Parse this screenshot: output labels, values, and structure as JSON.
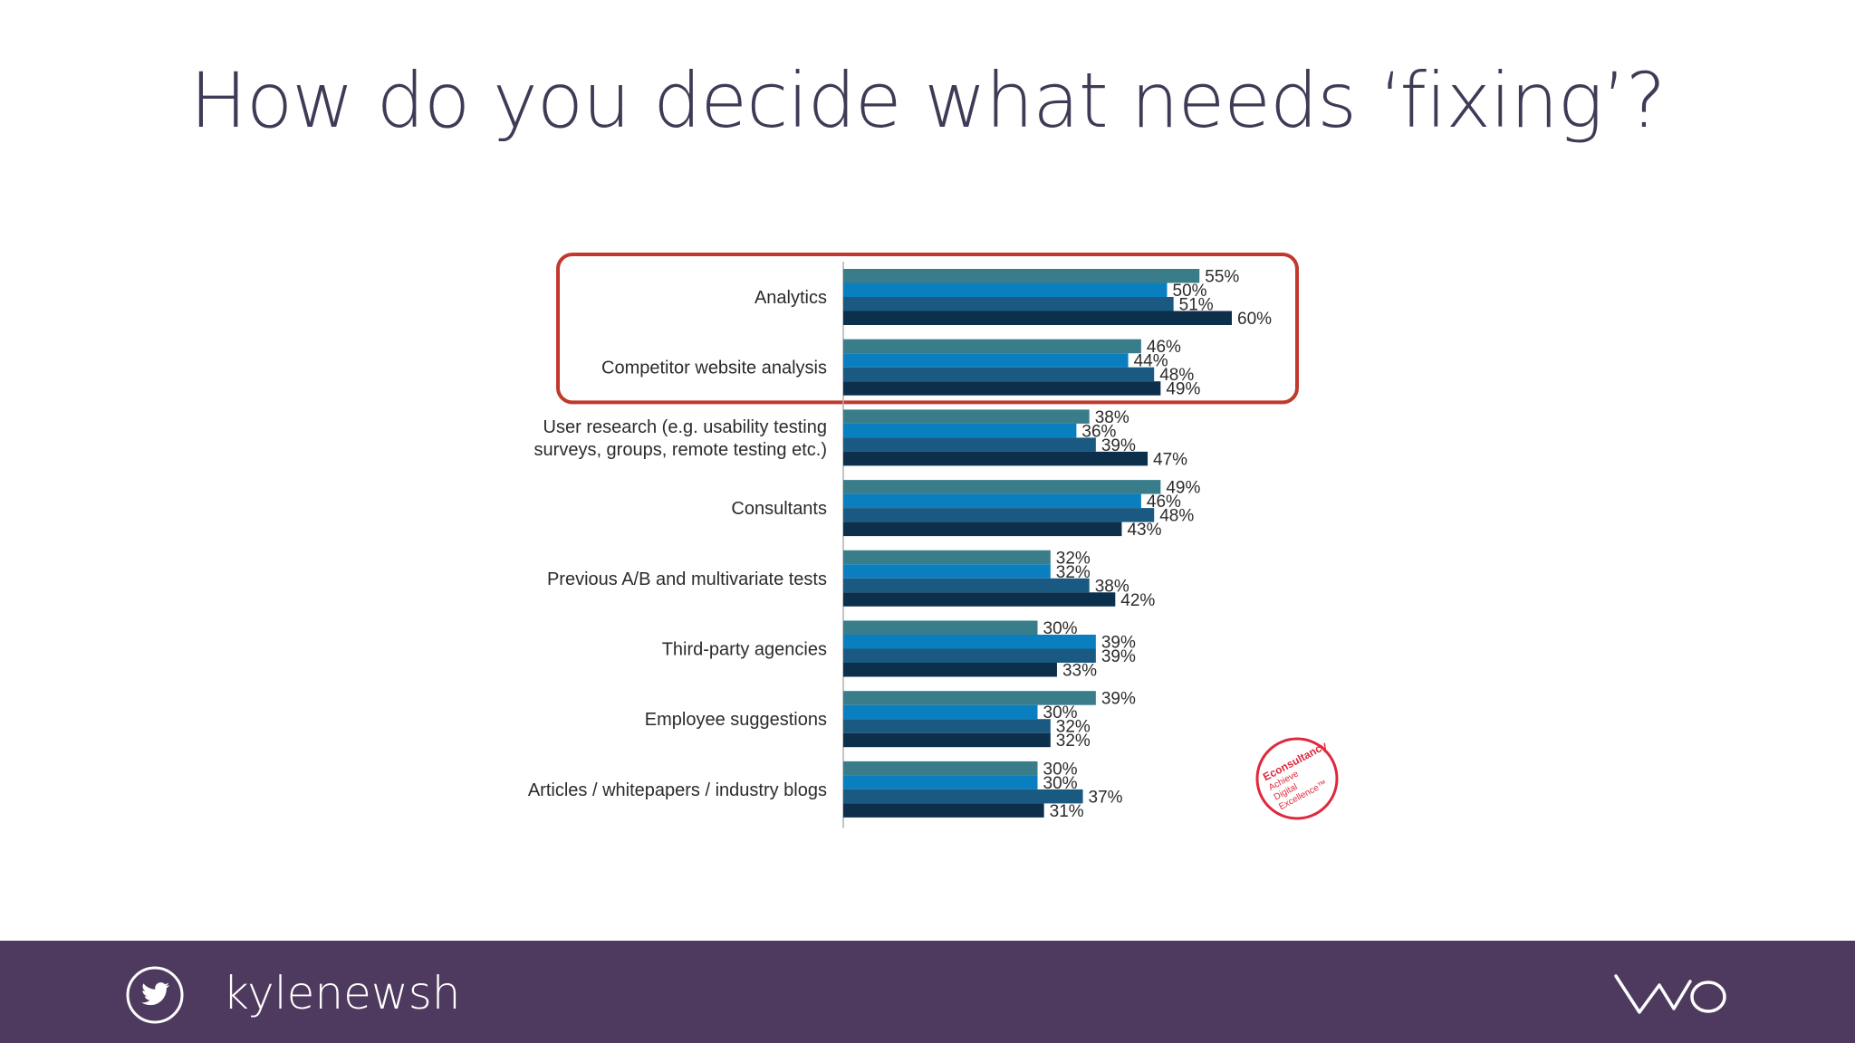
{
  "slide": {
    "title": "How do you decide what needs ‘fixing’?"
  },
  "footer": {
    "handle": "kylenewsh",
    "icon": "twitter-bird-icon",
    "logo": "brand-logo-icon",
    "background": "#4e3a5e"
  },
  "badge": {
    "text_lines": [
      "Econsultancy",
      "Achieve",
      "Digital",
      "Excellence™"
    ],
    "color": "#e0283c"
  },
  "chart_data": {
    "type": "bar",
    "orientation": "horizontal",
    "title": "",
    "xlabel": "",
    "ylabel": "",
    "xlim": [
      0,
      100
    ],
    "grid": false,
    "legend": "none",
    "highlight": {
      "categories": [
        "Analytics",
        "Competitor website analysis"
      ],
      "color": "#c0392b"
    },
    "categories": [
      "Analytics",
      "Competitor website analysis",
      "User research (e.g. usability testing surveys, groups, remote testing etc.)",
      "Consultants",
      "Previous A/B and multivariate tests",
      "Third-party agencies",
      "Employee suggestions",
      "Articles / whitepapers / industry blogs"
    ],
    "category_lines": [
      [
        "Analytics"
      ],
      [
        "Competitor website analysis"
      ],
      [
        "User research (e.g. usability testing",
        "surveys, groups, remote testing etc.)"
      ],
      [
        "Consultants"
      ],
      [
        "Previous A/B and multivariate tests"
      ],
      [
        "Third-party agencies"
      ],
      [
        "Employee suggestions"
      ],
      [
        "Articles / whitepapers / industry blogs"
      ]
    ],
    "series_colors": [
      "#3a7d8a",
      "#0a7fbf",
      "#1a5a82",
      "#0c2f4c"
    ],
    "series": [
      {
        "values": [
          55,
          46,
          38,
          49,
          32,
          30,
          39,
          30
        ]
      },
      {
        "values": [
          50,
          44,
          36,
          46,
          32,
          39,
          30,
          30
        ]
      },
      {
        "values": [
          51,
          48,
          39,
          48,
          38,
          39,
          32,
          37
        ]
      },
      {
        "values": [
          60,
          49,
          47,
          43,
          42,
          33,
          32,
          31
        ]
      }
    ]
  }
}
